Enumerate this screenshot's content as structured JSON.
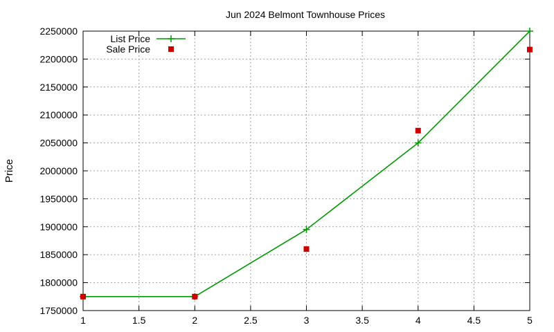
{
  "chart_data": {
    "type": "line",
    "title": "Jun 2024 Belmont Townhouse Prices",
    "xlabel": "",
    "ylabel": "Price",
    "xlim": [
      1,
      5
    ],
    "ylim": [
      1750000,
      2250000
    ],
    "x_ticks": [
      "1",
      "1.5",
      "2",
      "2.5",
      "3",
      "3.5",
      "4",
      "4.5",
      "5"
    ],
    "y_ticks": [
      "1750000",
      "1800000",
      "1850000",
      "1900000",
      "1950000",
      "2000000",
      "2050000",
      "2100000",
      "2150000",
      "2200000",
      "2250000"
    ],
    "grid": true,
    "legend_position": "top-left",
    "series": [
      {
        "name": "List Price",
        "style": "line+cross",
        "color": "#009900",
        "x": [
          1,
          2,
          3,
          4,
          5
        ],
        "y": [
          1775000,
          1775000,
          1895000,
          2050000,
          2250000
        ]
      },
      {
        "name": "Sale Price",
        "style": "square-markers",
        "color": "#cc0000",
        "x": [
          1,
          2,
          3,
          4,
          5
        ],
        "y": [
          1775000,
          1775000,
          1860000,
          2072000,
          2217000
        ]
      }
    ]
  }
}
